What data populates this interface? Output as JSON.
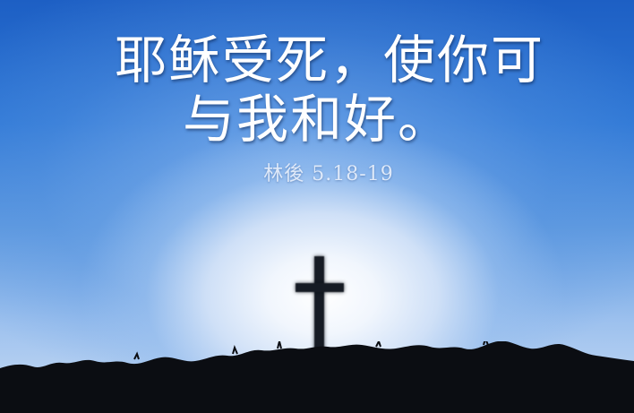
{
  "verse": {
    "line1": "耶稣受死，使你可",
    "line2": "与我和好。"
  },
  "reference": "林後 5.18-19",
  "colors": {
    "sky_top": "#1d5fc4",
    "sky_glow": "#ffffff",
    "text": "#ffffff",
    "silhouette": "#0b0d12"
  }
}
